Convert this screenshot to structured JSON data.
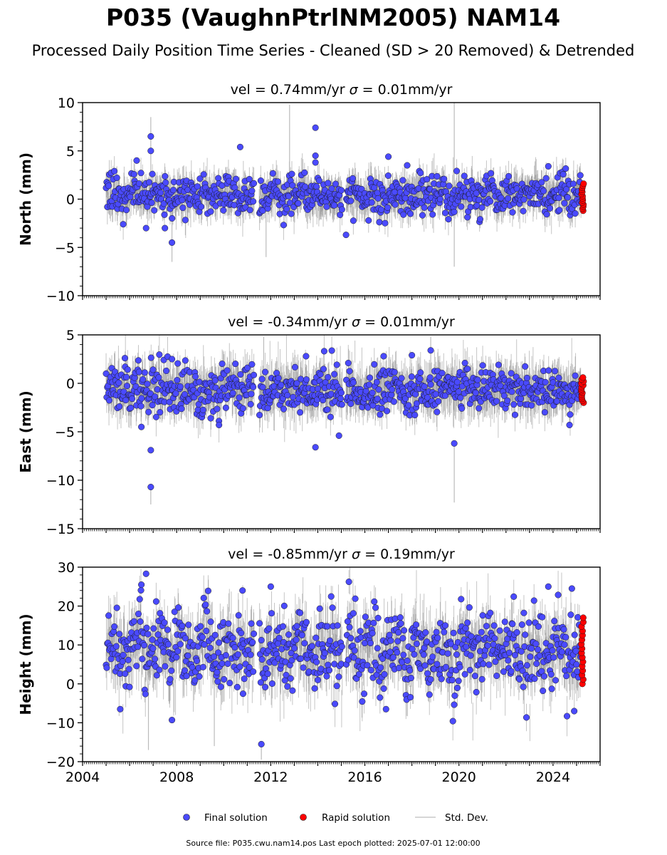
{
  "header": {
    "title": "P035 (VaughnPtrlNM2005) NAM14",
    "subtitle": "Processed Daily Position Time Series - Cleaned (SD > 20 Removed) & Detrended"
  },
  "chart_data": [
    {
      "type": "scatter",
      "panel": "north",
      "title": "vel = 0.74mm/yr   σ = 0.01mm/yr",
      "title_vel": "vel = 0.74mm/yr",
      "title_sigma": "= 0.01mm/yr",
      "ylabel": "North (mm)",
      "xlim": [
        2004.0,
        2026.0
      ],
      "ylim": [
        -10,
        10
      ],
      "yticks": [
        -10,
        -5,
        0,
        5,
        10
      ],
      "ytick_labels": [
        "−10",
        "−5",
        "0",
        "5",
        "10"
      ],
      "time_span": [
        2005.0,
        2025.2
      ],
      "gaps": [
        [
          2011.3,
          2011.5
        ],
        [
          2015.05,
          2015.2
        ]
      ],
      "typical_scatter_mm": 1.0,
      "typical_sd_mm": 1.3,
      "final_solution_highlights": [
        [
          2006.9,
          6.5
        ],
        [
          2006.9,
          5.0
        ],
        [
          2013.9,
          7.4
        ],
        [
          2010.7,
          5.4
        ],
        [
          2013.9,
          4.5
        ],
        [
          2013.9,
          3.8
        ],
        [
          2017.0,
          4.4
        ],
        [
          2007.8,
          -4.5
        ],
        [
          2015.2,
          -3.7
        ],
        [
          2006.3,
          4.0
        ],
        [
          2023.8,
          3.4
        ],
        [
          2017.8,
          3.5
        ],
        [
          2006.7,
          -3.0
        ],
        [
          2007.5,
          -3.0
        ]
      ],
      "rapid_solution": {
        "x_start": 2025.2,
        "x_end": 2025.3,
        "count": 14,
        "range": [
          -1.2,
          1.6
        ]
      },
      "error_bar_spikes": [
        [
          2006.9,
          0.0,
          8.5
        ],
        [
          2012.8,
          0.0,
          9.8
        ],
        [
          2007.8,
          0.0,
          -6.5
        ],
        [
          2019.8,
          0.0,
          10.0
        ],
        [
          2019.8,
          0.0,
          -7.0
        ],
        [
          2011.8,
          0.0,
          -6.0
        ]
      ]
    },
    {
      "type": "scatter",
      "panel": "east",
      "title": "vel = -0.34mm/yr   σ = 0.01mm/yr",
      "title_vel": "vel = -0.34mm/yr",
      "title_sigma": "= 0.01mm/yr",
      "ylabel": "East (mm)",
      "xlim": [
        2004.0,
        2026.0
      ],
      "ylim": [
        -15,
        5
      ],
      "yticks": [
        -15,
        -10,
        -5,
        0,
        5
      ],
      "ytick_labels": [
        "−15",
        "−10",
        "−5",
        "0",
        "5"
      ],
      "time_span": [
        2005.0,
        2025.2
      ],
      "gaps": [
        [
          2011.3,
          2011.5
        ],
        [
          2015.05,
          2015.2
        ]
      ],
      "typical_scatter_mm": 1.2,
      "typical_sd_mm": 1.6,
      "final_solution_highlights": [
        [
          2006.9,
          -6.9
        ],
        [
          2006.9,
          -10.7
        ],
        [
          2013.9,
          -6.6
        ],
        [
          2019.8,
          -6.2
        ],
        [
          2014.9,
          -5.4
        ],
        [
          2018.8,
          3.4
        ],
        [
          2013.5,
          2.8
        ],
        [
          2016.8,
          2.8
        ],
        [
          2018.0,
          2.9
        ],
        [
          2005.8,
          2.6
        ],
        [
          2007.8,
          2.5
        ],
        [
          2006.5,
          -4.5
        ],
        [
          2009.8,
          -4.3
        ],
        [
          2024.7,
          -4.3
        ]
      ],
      "rapid_solution": {
        "x_start": 2025.2,
        "x_end": 2025.3,
        "count": 14,
        "range": [
          -2.0,
          0.6
        ]
      },
      "error_bar_spikes": [
        [
          2006.9,
          -10.7,
          -12.5
        ],
        [
          2019.8,
          -6.2,
          -12.3
        ],
        [
          2011.7,
          0.0,
          4.8
        ],
        [
          2018.8,
          0.0,
          4.8
        ]
      ]
    },
    {
      "type": "scatter",
      "panel": "height",
      "title": "vel = -0.85mm/yr   σ = 0.19mm/yr",
      "title_vel": "vel = -0.85mm/yr",
      "title_sigma": "= 0.19mm/yr",
      "ylabel": "Height (mm)",
      "xlim": [
        2004.0,
        2026.0
      ],
      "ylim": [
        -20,
        30
      ],
      "yticks": [
        -20,
        -10,
        0,
        10,
        20,
        30
      ],
      "ytick_labels": [
        "−20",
        "−10",
        "0",
        "10",
        "20",
        "30"
      ],
      "xticks": [
        2004,
        2008,
        2012,
        2016,
        2020,
        2024
      ],
      "xtick_labels": [
        "2004",
        "2008",
        "2012",
        "2016",
        "2020",
        "2024"
      ],
      "time_span": [
        2005.0,
        2025.2
      ],
      "gaps": [
        [
          2011.3,
          2011.5
        ],
        [
          2015.05,
          2015.2
        ]
      ],
      "typical_scatter_mm": 5.0,
      "typical_sd_mm": 4.5,
      "final_solution_highlights": [
        [
          2011.6,
          -15.5
        ],
        [
          2007.8,
          -9.3
        ],
        [
          2006.7,
          28.3
        ],
        [
          2006.5,
          25.5
        ],
        [
          2012.0,
          25.0
        ],
        [
          2010.8,
          24.0
        ],
        [
          2023.8,
          25.0
        ],
        [
          2024.8,
          24.5
        ],
        [
          2005.6,
          -6.5
        ],
        [
          2016.9,
          -6.5
        ],
        [
          2024.9,
          -7.0
        ]
      ],
      "rapid_solution": {
        "x_start": 2025.2,
        "x_end": 2025.3,
        "count": 16,
        "range": [
          0.0,
          17.0
        ]
      },
      "error_bar_spikes": [
        [
          2011.6,
          -15.5,
          -19.5
        ],
        [
          2006.8,
          0.0,
          -17.0
        ],
        [
          2009.6,
          0.0,
          -16.0
        ]
      ]
    }
  ],
  "legend": {
    "items": [
      {
        "label": "Final solution",
        "color": "#4a4aff",
        "kind": "marker"
      },
      {
        "label": "Rapid solution",
        "color": "#ff0000",
        "kind": "marker"
      },
      {
        "label": "Std. Dev.",
        "color": "#cccccc",
        "kind": "line"
      }
    ]
  },
  "footer": {
    "source": "Source file: P035.cwu.nam14.pos  Last epoch plotted: 2025-07-01 12:00:00"
  },
  "colors": {
    "final": "#4a4aff",
    "rapid": "#ff0000",
    "errorbar": "#7f7f7f",
    "marker_edge": "#1a1a1a"
  }
}
